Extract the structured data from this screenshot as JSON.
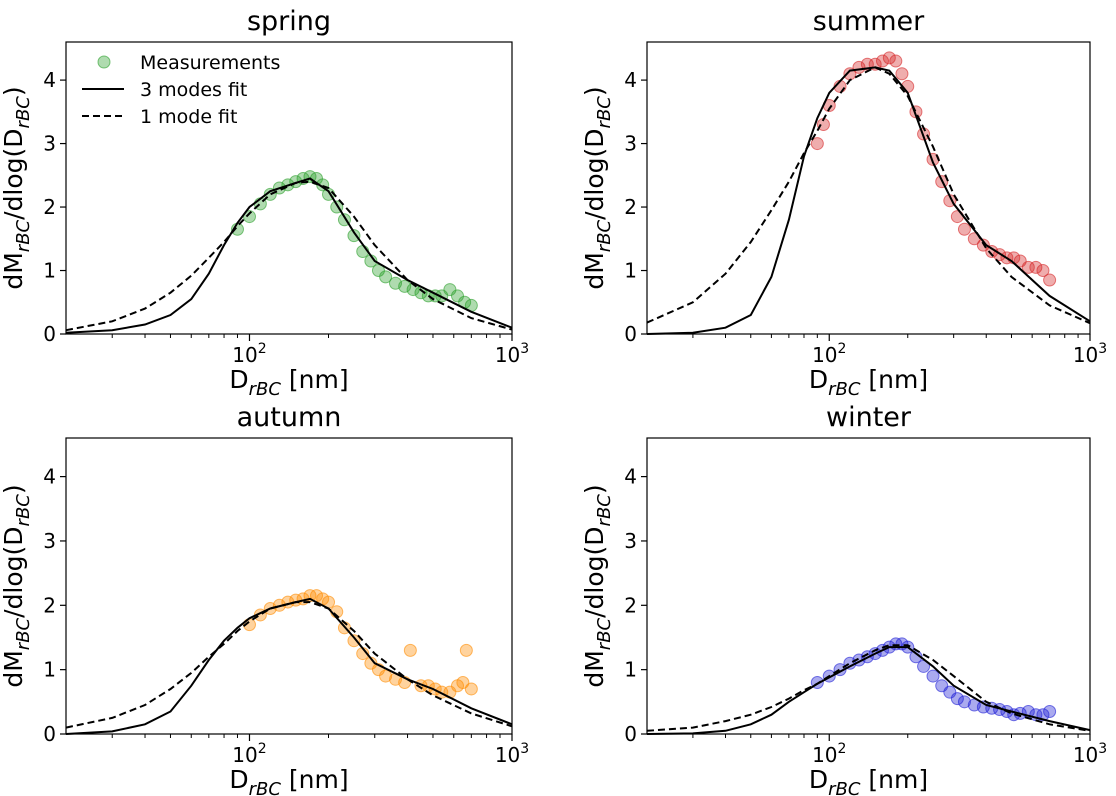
{
  "legend": {
    "position": "upper-left",
    "panel": "spring",
    "entries": [
      {
        "label": "Measurements",
        "style": "marker"
      },
      {
        "label": "3 modes fit",
        "style": "solid"
      },
      {
        "label": "1 mode fit",
        "style": "dashed"
      }
    ]
  },
  "chart_data": [
    {
      "type": "scatter",
      "title": "spring",
      "xlabel": "D_rBC [nm]",
      "ylabel": "dM_rBC/dlog(D_rBC)",
      "xscale": "log",
      "xlim": [
        20,
        1000
      ],
      "ylim": [
        0,
        4.6
      ],
      "xticks": [
        "10^2",
        "10^3"
      ],
      "yticks": [
        "0",
        "1",
        "2",
        "3",
        "4"
      ],
      "grid": false,
      "color": "#2ca02c",
      "series": [
        {
          "name": "Measurements",
          "style": "scatter",
          "x": [
            90,
            100,
            110,
            120,
            130,
            140,
            150,
            160,
            170,
            180,
            190,
            200,
            215,
            230,
            250,
            270,
            290,
            310,
            330,
            360,
            390,
            420,
            450,
            480,
            510,
            540,
            580,
            620,
            660,
            700
          ],
          "y": [
            1.65,
            1.85,
            2.05,
            2.2,
            2.3,
            2.35,
            2.4,
            2.45,
            2.48,
            2.45,
            2.35,
            2.2,
            2.0,
            1.8,
            1.55,
            1.3,
            1.15,
            1.0,
            0.9,
            0.8,
            0.75,
            0.7,
            0.65,
            0.6,
            0.6,
            0.6,
            0.7,
            0.6,
            0.5,
            0.45
          ]
        },
        {
          "name": "3 modes fit",
          "style": "solid",
          "x": [
            20,
            30,
            40,
            50,
            60,
            70,
            80,
            90,
            100,
            120,
            150,
            170,
            200,
            250,
            300,
            400,
            500,
            700,
            1000
          ],
          "y": [
            0.02,
            0.06,
            0.15,
            0.3,
            0.55,
            0.95,
            1.4,
            1.75,
            2.0,
            2.25,
            2.38,
            2.45,
            2.25,
            1.6,
            1.15,
            0.85,
            0.65,
            0.35,
            0.1
          ]
        },
        {
          "name": "1 mode fit",
          "style": "dashed",
          "x": [
            20,
            30,
            40,
            50,
            60,
            70,
            80,
            90,
            100,
            120,
            150,
            170,
            200,
            250,
            300,
            400,
            500,
            700,
            1000
          ],
          "y": [
            0.06,
            0.2,
            0.4,
            0.65,
            0.92,
            1.2,
            1.45,
            1.7,
            1.9,
            2.2,
            2.38,
            2.4,
            2.3,
            1.85,
            1.4,
            0.85,
            0.55,
            0.25,
            0.07
          ]
        }
      ]
    },
    {
      "type": "scatter",
      "title": "summer",
      "xlabel": "D_rBC [nm]",
      "ylabel": "dM_rBC/dlog(D_rBC)",
      "xscale": "log",
      "xlim": [
        20,
        1000
      ],
      "ylim": [
        0,
        4.6
      ],
      "xticks": [
        "10^2",
        "10^3"
      ],
      "yticks": [
        "0",
        "1",
        "2",
        "3",
        "4"
      ],
      "grid": false,
      "color": "#d62728",
      "series": [
        {
          "name": "Measurements",
          "style": "scatter",
          "x": [
            90,
            95,
            100,
            110,
            120,
            130,
            140,
            150,
            160,
            170,
            180,
            190,
            200,
            215,
            230,
            250,
            270,
            290,
            310,
            330,
            360,
            390,
            420,
            450,
            480,
            510,
            540,
            580,
            620,
            660,
            700
          ],
          "y": [
            3.0,
            3.3,
            3.6,
            3.9,
            4.1,
            4.2,
            4.25,
            4.25,
            4.3,
            4.35,
            4.3,
            4.1,
            3.9,
            3.5,
            3.15,
            2.75,
            2.4,
            2.1,
            1.85,
            1.65,
            1.5,
            1.4,
            1.3,
            1.25,
            1.2,
            1.2,
            1.15,
            1.05,
            1.05,
            1.0,
            0.85
          ]
        },
        {
          "name": "3 modes fit",
          "style": "solid",
          "x": [
            20,
            30,
            40,
            50,
            60,
            70,
            80,
            90,
            100,
            120,
            150,
            170,
            200,
            250,
            300,
            400,
            500,
            700,
            1000
          ],
          "y": [
            0.0,
            0.02,
            0.1,
            0.3,
            0.9,
            1.8,
            2.8,
            3.4,
            3.8,
            4.15,
            4.2,
            4.15,
            3.8,
            2.7,
            2.05,
            1.4,
            1.15,
            0.6,
            0.2
          ]
        },
        {
          "name": "1 mode fit",
          "style": "dashed",
          "x": [
            20,
            30,
            40,
            50,
            60,
            70,
            80,
            90,
            100,
            120,
            150,
            170,
            200,
            250,
            300,
            400,
            500,
            700,
            1000
          ],
          "y": [
            0.18,
            0.5,
            0.95,
            1.45,
            1.95,
            2.4,
            2.85,
            3.2,
            3.55,
            4.0,
            4.2,
            4.1,
            3.75,
            2.95,
            2.2,
            1.35,
            0.9,
            0.45,
            0.17
          ]
        }
      ]
    },
    {
      "type": "scatter",
      "title": "autumn",
      "xlabel": "D_rBC [nm]",
      "ylabel": "dM_rBC/dlog(D_rBC)",
      "xscale": "log",
      "xlim": [
        20,
        1000
      ],
      "ylim": [
        0,
        4.6
      ],
      "xticks": [
        "10^2",
        "10^3"
      ],
      "yticks": [
        "0",
        "1",
        "2",
        "3",
        "4"
      ],
      "grid": false,
      "color": "#ff8c00",
      "series": [
        {
          "name": "Measurements",
          "style": "scatter",
          "x": [
            100,
            110,
            120,
            130,
            140,
            150,
            160,
            170,
            180,
            190,
            200,
            215,
            230,
            250,
            270,
            290,
            310,
            330,
            360,
            390,
            410,
            450,
            480,
            510,
            540,
            580,
            620,
            650,
            670,
            700
          ],
          "y": [
            1.7,
            1.85,
            1.95,
            2.0,
            2.05,
            2.08,
            2.1,
            2.15,
            2.15,
            2.1,
            2.05,
            1.9,
            1.65,
            1.45,
            1.25,
            1.1,
            1.0,
            0.9,
            0.85,
            0.8,
            1.3,
            0.75,
            0.75,
            0.7,
            0.65,
            0.65,
            0.75,
            0.8,
            1.3,
            0.7
          ]
        },
        {
          "name": "3 modes fit",
          "style": "solid",
          "x": [
            20,
            30,
            40,
            50,
            60,
            70,
            80,
            90,
            100,
            120,
            150,
            170,
            200,
            250,
            300,
            400,
            500,
            700,
            1000
          ],
          "y": [
            0.0,
            0.04,
            0.15,
            0.35,
            0.75,
            1.15,
            1.45,
            1.65,
            1.8,
            1.95,
            2.05,
            2.1,
            1.95,
            1.5,
            1.1,
            0.85,
            0.7,
            0.4,
            0.15
          ]
        },
        {
          "name": "1 mode fit",
          "style": "dashed",
          "x": [
            20,
            30,
            40,
            50,
            60,
            70,
            80,
            90,
            100,
            120,
            150,
            170,
            200,
            250,
            300,
            400,
            500,
            700,
            1000
          ],
          "y": [
            0.1,
            0.25,
            0.45,
            0.7,
            0.95,
            1.2,
            1.4,
            1.6,
            1.75,
            1.95,
            2.05,
            2.05,
            1.95,
            1.6,
            1.25,
            0.85,
            0.6,
            0.32,
            0.12
          ]
        }
      ]
    },
    {
      "type": "scatter",
      "title": "winter",
      "xlabel": "D_rBC [nm]",
      "ylabel": "dM_rBC/dlog(D_rBC)",
      "xscale": "log",
      "xlim": [
        20,
        1000
      ],
      "ylim": [
        0,
        4.6
      ],
      "xticks": [
        "10^2",
        "10^3"
      ],
      "yticks": [
        "0",
        "1",
        "2",
        "3",
        "4"
      ],
      "grid": false,
      "color": "#1f1fd6",
      "series": [
        {
          "name": "Measurements",
          "style": "scatter",
          "x": [
            90,
            100,
            110,
            120,
            130,
            140,
            150,
            160,
            170,
            180,
            190,
            200,
            215,
            230,
            250,
            270,
            290,
            310,
            330,
            360,
            390,
            420,
            450,
            480,
            510,
            540,
            580,
            620,
            660,
            700
          ],
          "y": [
            0.8,
            0.9,
            1.0,
            1.1,
            1.15,
            1.2,
            1.25,
            1.3,
            1.35,
            1.4,
            1.4,
            1.35,
            1.2,
            1.05,
            0.9,
            0.75,
            0.65,
            0.55,
            0.5,
            0.45,
            0.42,
            0.4,
            0.38,
            0.35,
            0.3,
            0.32,
            0.35,
            0.3,
            0.3,
            0.35
          ]
        },
        {
          "name": "3 modes fit",
          "style": "solid",
          "x": [
            20,
            30,
            40,
            50,
            60,
            70,
            80,
            90,
            100,
            120,
            150,
            170,
            200,
            250,
            300,
            400,
            500,
            700,
            1000
          ],
          "y": [
            0.0,
            0.01,
            0.05,
            0.15,
            0.3,
            0.5,
            0.65,
            0.78,
            0.88,
            1.05,
            1.25,
            1.35,
            1.35,
            1.05,
            0.75,
            0.45,
            0.35,
            0.2,
            0.06
          ]
        },
        {
          "name": "1 mode fit",
          "style": "dashed",
          "x": [
            20,
            30,
            40,
            50,
            60,
            70,
            80,
            90,
            100,
            120,
            150,
            170,
            200,
            250,
            300,
            400,
            500,
            700,
            1000
          ],
          "y": [
            0.05,
            0.1,
            0.2,
            0.3,
            0.42,
            0.55,
            0.68,
            0.78,
            0.9,
            1.1,
            1.3,
            1.38,
            1.38,
            1.15,
            0.9,
            0.5,
            0.32,
            0.15,
            0.05
          ]
        }
      ]
    }
  ]
}
